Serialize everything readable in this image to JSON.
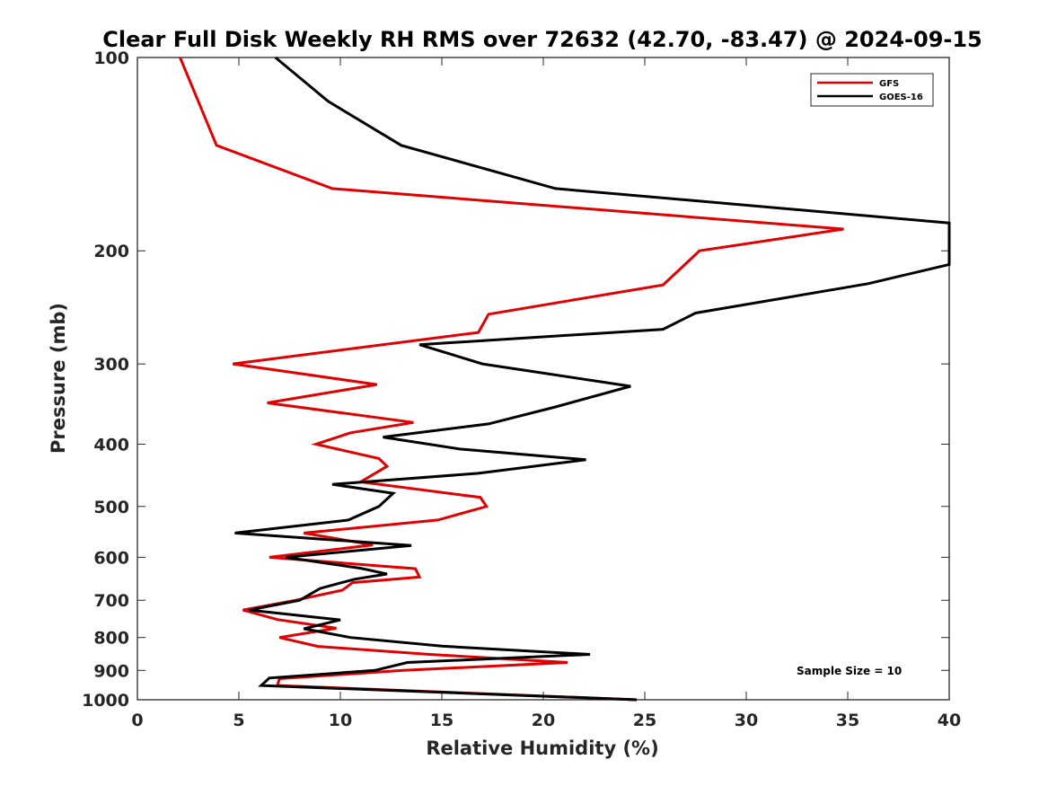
{
  "chart_data": {
    "type": "line",
    "title": "Clear Full Disk Weekly RH RMS over 72632 (42.70, -83.47) @ 2024-09-15",
    "xlabel": "Relative Humidity (%)",
    "ylabel": "Pressure (mb)",
    "xlim": [
      0,
      40
    ],
    "ylim": [
      100,
      1000
    ],
    "y_scale": "log",
    "y_reversed": true,
    "x_ticks": [
      0,
      5,
      10,
      15,
      20,
      25,
      30,
      35,
      40
    ],
    "y_ticks": [
      100,
      200,
      300,
      400,
      500,
      600,
      700,
      800,
      900,
      1000
    ],
    "legend": {
      "placement": "top-right"
    },
    "annotation": "Sample Size = 10",
    "grid": false,
    "series": [
      {
        "name": "GFS",
        "color": "#e00000",
        "points": [
          [
            2.1,
            100
          ],
          [
            3.0,
            117
          ],
          [
            3.9,
            137
          ],
          [
            9.6,
            160
          ],
          [
            34.8,
            185
          ],
          [
            27.7,
            200
          ],
          [
            25.9,
            226
          ],
          [
            17.3,
            251
          ],
          [
            16.8,
            268
          ],
          [
            4.7,
            300
          ],
          [
            11.8,
            323
          ],
          [
            6.4,
            345
          ],
          [
            13.6,
            370
          ],
          [
            10.5,
            384
          ],
          [
            8.8,
            400
          ],
          [
            11.9,
            421
          ],
          [
            12.3,
            433
          ],
          [
            11.0,
            458
          ],
          [
            16.9,
            484
          ],
          [
            17.2,
            500
          ],
          [
            14.8,
            525
          ],
          [
            8.2,
            550
          ],
          [
            11.6,
            574
          ],
          [
            6.5,
            600
          ],
          [
            13.7,
            625
          ],
          [
            13.9,
            644
          ],
          [
            10.6,
            657
          ],
          [
            10.1,
            675
          ],
          [
            7.8,
            700
          ],
          [
            5.2,
            725
          ],
          [
            6.9,
            750
          ],
          [
            9.8,
            774
          ],
          [
            7.0,
            800
          ],
          [
            8.9,
            826
          ],
          [
            14.4,
            850
          ],
          [
            21.2,
            875
          ],
          [
            13.1,
            900
          ],
          [
            7.0,
            927
          ],
          [
            6.9,
            950
          ],
          [
            24.6,
            1000
          ]
        ]
      },
      {
        "name": "GOES-16",
        "color": "#000000",
        "points": [
          [
            6.8,
            100
          ],
          [
            9.4,
            117
          ],
          [
            13.0,
            137
          ],
          [
            20.6,
            160
          ],
          [
            40.0,
            181
          ],
          [
            40.0,
            210
          ],
          [
            36.0,
            225
          ],
          [
            27.5,
            250
          ],
          [
            25.9,
            265
          ],
          [
            13.9,
            280
          ],
          [
            17.0,
            300
          ],
          [
            24.3,
            325
          ],
          [
            20.6,
            350
          ],
          [
            17.3,
            372
          ],
          [
            12.1,
            390
          ],
          [
            15.9,
            407
          ],
          [
            22.1,
            423
          ],
          [
            16.8,
            444
          ],
          [
            9.6,
            462
          ],
          [
            12.6,
            477
          ],
          [
            11.9,
            500
          ],
          [
            10.4,
            525
          ],
          [
            4.8,
            550
          ],
          [
            13.5,
            575
          ],
          [
            7.3,
            600
          ],
          [
            11.0,
            624
          ],
          [
            12.3,
            637
          ],
          [
            10.7,
            649
          ],
          [
            9.0,
            671
          ],
          [
            8.0,
            700
          ],
          [
            5.5,
            725
          ],
          [
            10.0,
            751
          ],
          [
            8.2,
            775
          ],
          [
            10.5,
            800
          ],
          [
            15.0,
            825
          ],
          [
            22.3,
            850
          ],
          [
            13.3,
            875
          ],
          [
            11.7,
            900
          ],
          [
            6.5,
            925
          ],
          [
            6.1,
            950
          ],
          [
            24.6,
            1000
          ]
        ]
      }
    ]
  }
}
